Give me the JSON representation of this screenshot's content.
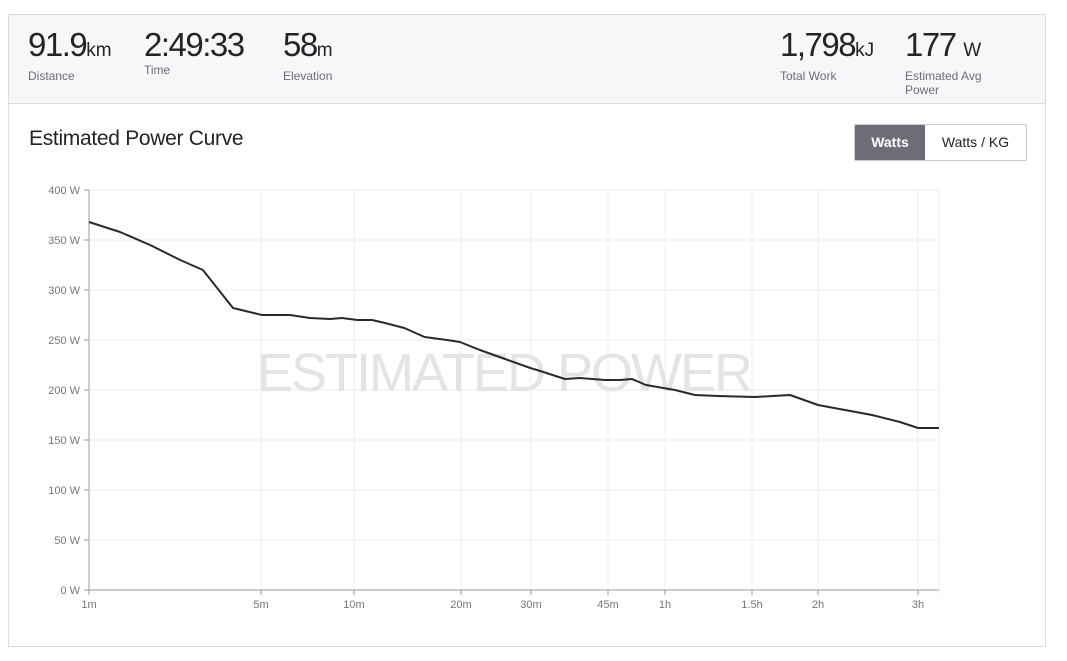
{
  "stats": [
    {
      "value": "91.9",
      "unit": "km",
      "label": "Distance"
    },
    {
      "value": "2:49:33",
      "unit": "",
      "label": "Time"
    },
    {
      "value": "58",
      "unit": "m",
      "label": "Elevation"
    },
    {
      "value": "1,798",
      "unit": "kJ",
      "label": "Total Work"
    },
    {
      "value": "177",
      "unit": "W",
      "label": "Estimated Avg Power"
    }
  ],
  "section_title": "Estimated Power Curve",
  "toggle": {
    "active": "Watts",
    "inactive": "Watts / KG"
  },
  "chart_data": {
    "type": "line",
    "title": "",
    "watermark": "ESTIMATED POWER",
    "xlabel": "",
    "ylabel": "",
    "x_unit": "minutes",
    "ylim": [
      0,
      400
    ],
    "y_ticks": [
      {
        "v": 0,
        "label": "0 W"
      },
      {
        "v": 50,
        "label": "50 W"
      },
      {
        "v": 100,
        "label": "100 W"
      },
      {
        "v": 150,
        "label": "150 W"
      },
      {
        "v": 200,
        "label": "200 W"
      },
      {
        "v": 250,
        "label": "250 W"
      },
      {
        "v": 300,
        "label": "300 W"
      },
      {
        "v": 350,
        "label": "350 W"
      },
      {
        "v": 400,
        "label": "400 W"
      }
    ],
    "x_ticks": [
      {
        "v": 1,
        "label": "1m"
      },
      {
        "v": 5,
        "label": "5m"
      },
      {
        "v": 10,
        "label": "10m"
      },
      {
        "v": 20,
        "label": "20m"
      },
      {
        "v": 30,
        "label": "30m"
      },
      {
        "v": 45,
        "label": "45m"
      },
      {
        "v": 60,
        "label": "1h"
      },
      {
        "v": 90,
        "label": "1.5h"
      },
      {
        "v": 120,
        "label": "2h"
      },
      {
        "v": 180,
        "label": "3h"
      }
    ],
    "grid": true,
    "line_color": "#2a2a2e",
    "x": [
      1,
      1.72,
      2.42,
      3.12,
      3.65,
      4.35,
      5.05,
      6.56,
      7.63,
      8.71,
      9.35,
      10.3,
      11.7,
      12.9,
      14.7,
      16.6,
      18.7,
      19.9,
      22.7,
      26.3,
      29.9,
      31.8,
      36.6,
      39.5,
      44.4,
      48.2,
      51.3,
      55.0,
      63.4,
      70.3,
      78.3,
      91.4,
      107.3,
      120,
      136.2,
      152.4,
      169.2,
      180,
      192.6
    ],
    "y": [
      368,
      358,
      345,
      330,
      320,
      282,
      275,
      275,
      272,
      271,
      272,
      270,
      270,
      267,
      262,
      253,
      250,
      248,
      240,
      231,
      222,
      219,
      211,
      212,
      210,
      210,
      211,
      205,
      200,
      195,
      194,
      193,
      195,
      185,
      180,
      175,
      168,
      162,
      162
    ]
  }
}
